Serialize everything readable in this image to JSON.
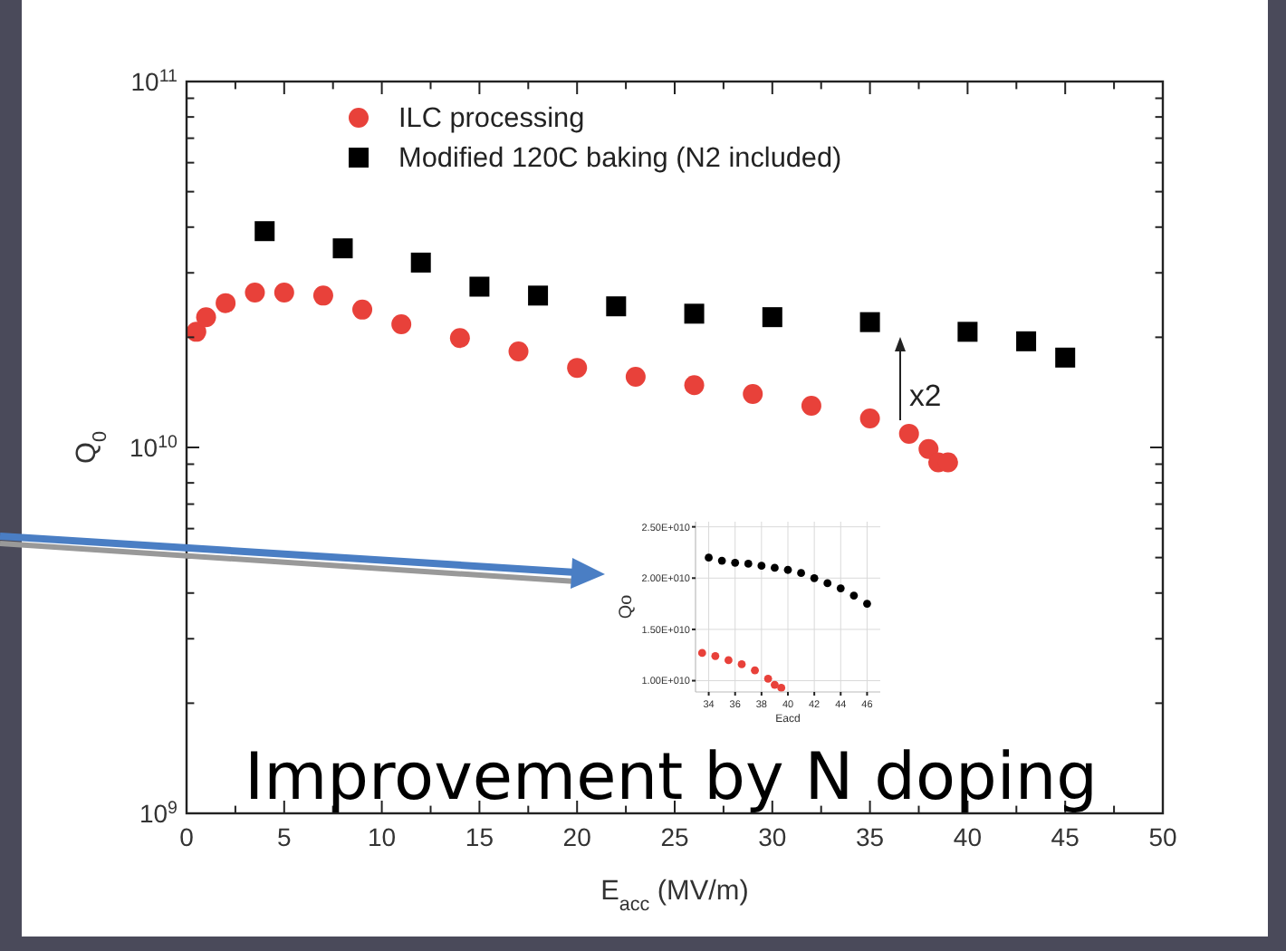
{
  "chart_data": [
    {
      "type": "scatter",
      "xlabel": "E$_{acc}$ (MV/m)",
      "ylabel": "Q$_{0}$",
      "log": "y",
      "legend": "top",
      "xlim": [
        0,
        50
      ],
      "ylim": [
        1000000000.0,
        100000000000.0
      ],
      "xticks": [
        0,
        {
          "value": 2.5,
          "label": null
        },
        5,
        {
          "value": 7.5,
          "label": null
        },
        10,
        {
          "value": 12.5,
          "label": null
        },
        15,
        {
          "value": 17.5,
          "label": null
        },
        20,
        {
          "value": 22.5,
          "label": null
        },
        25,
        {
          "value": 27.5,
          "label": null
        },
        30,
        {
          "value": 32.5,
          "label": null
        },
        35,
        {
          "value": 37.5,
          "label": null
        },
        40,
        {
          "value": 42.5,
          "label": null
        },
        45,
        {
          "value": 47.5,
          "label": null
        },
        50
      ],
      "yticks": [
        {
          "value": 1000000000.0,
          "label": "10$^{9}$"
        },
        {
          "value": 2000000000.0,
          "label": null
        },
        {
          "value": 3000000000.0,
          "label": null
        },
        {
          "value": 4000000000.0,
          "label": null
        },
        {
          "value": 5000000000.0,
          "label": null
        },
        {
          "value": 6000000000.0,
          "label": null
        },
        {
          "value": 7000000000.0,
          "label": null
        },
        {
          "value": 8000000000.0,
          "label": null
        },
        {
          "value": 9000000000.0,
          "label": null
        },
        {
          "value": 10000000000.0,
          "label": "10$^{10}$"
        },
        {
          "value": 20000000000.0,
          "label": null
        },
        {
          "value": 30000000000.0,
          "label": null
        },
        {
          "value": 40000000000.0,
          "label": null
        },
        {
          "value": 50000000000.0,
          "label": null
        },
        {
          "value": 60000000000.0,
          "label": null
        },
        {
          "value": 70000000000.0,
          "label": null
        },
        {
          "value": 80000000000.0,
          "label": null
        },
        {
          "value": 90000000000.0,
          "label": null
        },
        {
          "value": 100000000000.0,
          "label": "10$^{11}$"
        }
      ],
      "series": [
        {
          "name": "ILC processing",
          "color": "#e8413a",
          "marker": "circle",
          "x": [
            0.5,
            1,
            2,
            3.5,
            5,
            7,
            9,
            11,
            14,
            17,
            20,
            23,
            26,
            29,
            32,
            35,
            37,
            38,
            38.5,
            39
          ],
          "values": [
            20700000000.0,
            22700000000.0,
            24800000000.0,
            26500000000.0,
            26500000000.0,
            26000000000.0,
            23800000000.0,
            21700000000.0,
            19900000000.0,
            18300000000.0,
            16500000000.0,
            15600000000.0,
            14800000000.0,
            14000000000.0,
            13000000000.0,
            12000000000.0,
            10900000000.0,
            9900000000.0,
            9100000000.0,
            9100000000.0
          ]
        },
        {
          "name": "Modified 120C baking (N2 included)",
          "color": "#000000",
          "marker": "square",
          "x": [
            4,
            8,
            12,
            15,
            18,
            22,
            26,
            30,
            35,
            40,
            43,
            45
          ],
          "values": [
            39000000000.0,
            35000000000.0,
            32000000000.0,
            27500000000.0,
            26000000000.0,
            24300000000.0,
            23200000000.0,
            22700000000.0,
            22000000000.0,
            20700000000.0,
            19500000000.0,
            17600000000.0
          ]
        }
      ],
      "annotations": [
        "x2",
        "Improvement by N doping"
      ]
    },
    {
      "type": "scatter",
      "xlabel": "Eacd",
      "ylabel": "Qo",
      "grid": true,
      "xlim": [
        33,
        47
      ],
      "ylim": [
        8900000000.0,
        25500000000.0
      ],
      "xticks": [
        34,
        36,
        38,
        40,
        42,
        44,
        46
      ],
      "yticks": [
        {
          "value": 10000000000.0,
          "label": "1.00E+010"
        },
        {
          "value": 15000000000.0,
          "label": "1.50E+010"
        },
        {
          "value": 20000000000.0,
          "label": "2.00E+010"
        },
        {
          "value": 25000000000.0,
          "label": "2.50E+010"
        }
      ],
      "series": [
        {
          "color": "#000000",
          "marker": "circle",
          "x": [
            34,
            35,
            36,
            37,
            38,
            39,
            40,
            41,
            42,
            43,
            44,
            45,
            46
          ],
          "values": [
            22000000000.0,
            21700000000.0,
            21500000000.0,
            21400000000.0,
            21200000000.0,
            21000000000.0,
            20800000000.0,
            20500000000.0,
            20000000000.0,
            19500000000.0,
            19000000000.0,
            18300000000.0,
            17500000000.0
          ]
        },
        {
          "color": "#e8413a",
          "marker": "circle",
          "x": [
            33.5,
            34.5,
            35.5,
            36.5,
            37.5,
            38.5,
            39,
            39.5
          ],
          "values": [
            12700000000.0,
            12400000000.0,
            12000000000.0,
            11600000000.0,
            11000000000.0,
            10200000000.0,
            9600000000.0,
            9300000000.0
          ]
        }
      ]
    }
  ]
}
